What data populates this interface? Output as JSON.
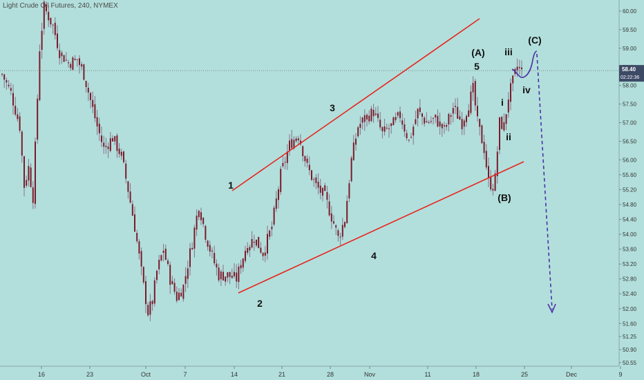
{
  "header": {
    "title": "Light Crude Oil Futures, 240, NYMEX"
  },
  "colors": {
    "background": "#b2dfdb",
    "candle_body": "#7a1a2a",
    "wick": "#8b6f8a",
    "trendline": "#e8231d",
    "projection": "#4a2fa8",
    "current_price_badge": "#3d4a66",
    "axis_text": "#333333"
  },
  "price_badge": {
    "price": "58.40",
    "countdown": "02:22:36"
  },
  "chart_data": {
    "type": "candlestick",
    "title": "Light Crude Oil Futures, 240, NYMEX",
    "interval": "240",
    "exchange": "NYMEX",
    "ylim": [
      50.7,
      60.1
    ],
    "y_ticks": [
      "60.00",
      "59.50",
      "59.00",
      "58.50",
      "58.00",
      "57.50",
      "57.00",
      "56.50",
      "56.00",
      "55.60",
      "55.20",
      "54.80",
      "54.40",
      "54.00",
      "53.60",
      "53.20",
      "52.80",
      "52.40",
      "52.00",
      "51.60",
      "51.25",
      "50.90",
      "50.55"
    ],
    "x_ticks": [
      "16",
      "23",
      "Oct",
      "7",
      "14",
      "21",
      "28",
      "Nov",
      "11",
      "18",
      "25",
      "Dec",
      "9"
    ],
    "path_points": [
      {
        "i": 0,
        "v": 58.3
      },
      {
        "i": 4,
        "v": 57.8
      },
      {
        "i": 8,
        "v": 56.9
      },
      {
        "i": 10,
        "v": 55.3
      },
      {
        "i": 12,
        "v": 55.8
      },
      {
        "i": 14,
        "v": 55.0
      },
      {
        "i": 17,
        "v": 59.0
      },
      {
        "i": 19,
        "v": 60.1
      },
      {
        "i": 23,
        "v": 59.6
      },
      {
        "i": 26,
        "v": 58.9
      },
      {
        "i": 30,
        "v": 58.6
      },
      {
        "i": 34,
        "v": 58.7
      },
      {
        "i": 37,
        "v": 58.3
      },
      {
        "i": 40,
        "v": 57.6
      },
      {
        "i": 43,
        "v": 56.9
      },
      {
        "i": 46,
        "v": 56.3
      },
      {
        "i": 50,
        "v": 56.6
      },
      {
        "i": 54,
        "v": 56.1
      },
      {
        "i": 57,
        "v": 55.2
      },
      {
        "i": 60,
        "v": 54.2
      },
      {
        "i": 62,
        "v": 53.4
      },
      {
        "i": 64,
        "v": 52.6
      },
      {
        "i": 66,
        "v": 51.9
      },
      {
        "i": 68,
        "v": 52.2
      },
      {
        "i": 70,
        "v": 53.0
      },
      {
        "i": 73,
        "v": 53.6
      },
      {
        "i": 76,
        "v": 52.8
      },
      {
        "i": 79,
        "v": 52.3
      },
      {
        "i": 82,
        "v": 52.6
      },
      {
        "i": 86,
        "v": 53.8
      },
      {
        "i": 89,
        "v": 54.8
      },
      {
        "i": 92,
        "v": 54.0
      },
      {
        "i": 95,
        "v": 53.4
      },
      {
        "i": 98,
        "v": 52.9
      },
      {
        "i": 102,
        "v": 52.9
      },
      {
        "i": 106,
        "v": 52.8
      },
      {
        "i": 110,
        "v": 53.6
      },
      {
        "i": 114,
        "v": 53.9
      },
      {
        "i": 118,
        "v": 53.5
      },
      {
        "i": 122,
        "v": 54.2
      },
      {
        "i": 126,
        "v": 55.6
      },
      {
        "i": 130,
        "v": 56.4
      },
      {
        "i": 134,
        "v": 56.7
      },
      {
        "i": 138,
        "v": 55.8
      },
      {
        "i": 142,
        "v": 55.3
      },
      {
        "i": 146,
        "v": 55.0
      },
      {
        "i": 150,
        "v": 54.3
      },
      {
        "i": 152,
        "v": 53.9
      },
      {
        "i": 155,
        "v": 54.4
      },
      {
        "i": 158,
        "v": 56.0
      },
      {
        "i": 161,
        "v": 56.9
      },
      {
        "i": 164,
        "v": 57.1
      },
      {
        "i": 168,
        "v": 57.3
      },
      {
        "i": 172,
        "v": 56.7
      },
      {
        "i": 176,
        "v": 56.9
      },
      {
        "i": 180,
        "v": 57.2
      },
      {
        "i": 184,
        "v": 56.5
      },
      {
        "i": 188,
        "v": 57.3
      },
      {
        "i": 192,
        "v": 57.0
      },
      {
        "i": 196,
        "v": 57.1
      },
      {
        "i": 200,
        "v": 56.8
      },
      {
        "i": 204,
        "v": 57.4
      },
      {
        "i": 208,
        "v": 57.0
      },
      {
        "i": 211,
        "v": 57.5
      },
      {
        "i": 213,
        "v": 57.9
      },
      {
        "i": 215,
        "v": 57.0
      },
      {
        "i": 218,
        "v": 56.3
      },
      {
        "i": 220,
        "v": 55.4
      },
      {
        "i": 222,
        "v": 55.3
      },
      {
        "i": 223,
        "v": 55.5
      },
      {
        "i": 225,
        "v": 57.0
      },
      {
        "i": 227,
        "v": 56.9
      },
      {
        "i": 229,
        "v": 57.7
      },
      {
        "i": 231,
        "v": 58.1
      },
      {
        "i": 233,
        "v": 58.5
      },
      {
        "i": 235,
        "v": 58.4
      }
    ],
    "wave_labels": [
      {
        "label": "1",
        "price": 54.95,
        "at_index": 96
      },
      {
        "label": "2",
        "price": 52.3,
        "at_index": 106
      },
      {
        "label": "3",
        "price": 56.9,
        "at_index": 136
      },
      {
        "label": "4",
        "price": 53.4,
        "at_index": 152
      },
      {
        "label": "5",
        "price": 58.25,
        "at_index": 213
      },
      {
        "label": "(A)",
        "price": 58.75,
        "at_index": 213
      },
      {
        "label": "(B)",
        "price": 54.8,
        "at_index": 222
      },
      {
        "label": "i",
        "price": 57.5,
        "at_index": 226
      },
      {
        "label": "ii",
        "price": 56.55,
        "at_index": 226
      },
      {
        "label": "iii",
        "price": 58.75,
        "at_index": 230
      },
      {
        "label": "iv",
        "price": 57.85,
        "at_index": 236
      },
      {
        "label": "(C)",
        "price": 59.2,
        "at_index": 240
      }
    ]
  }
}
